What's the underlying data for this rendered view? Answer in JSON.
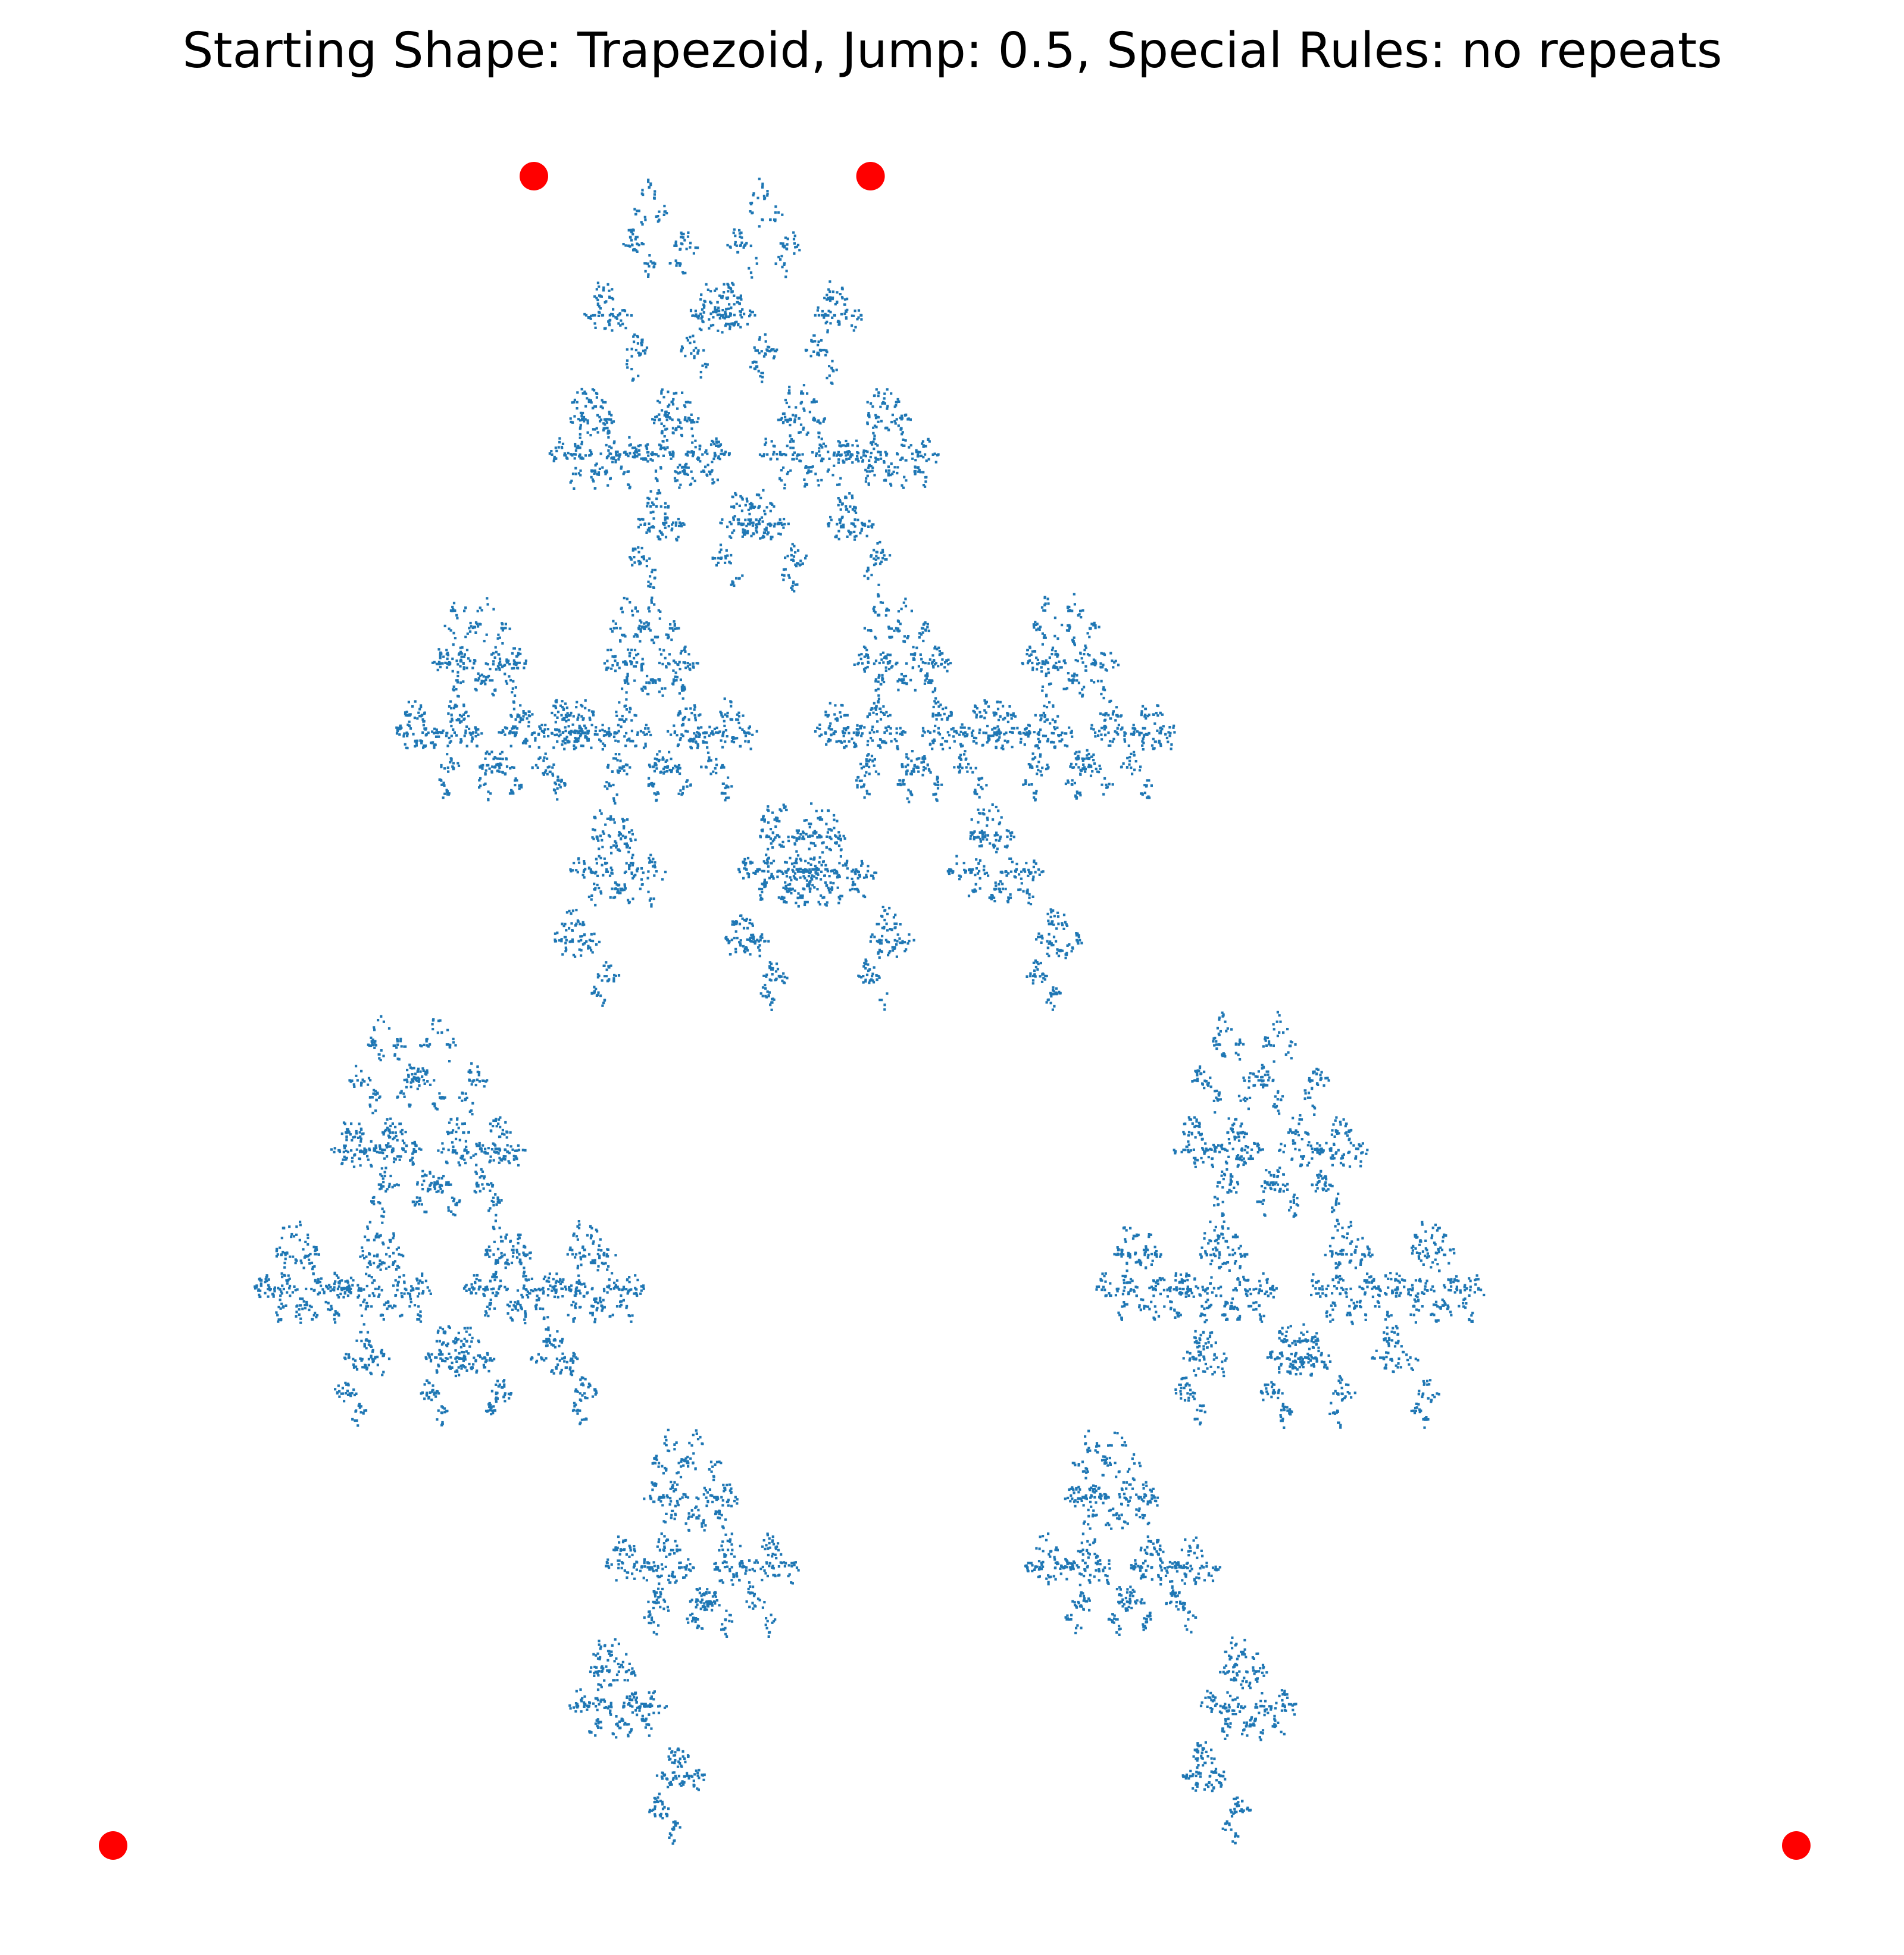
{
  "chart_data": {
    "type": "scatter",
    "title": "Starting Shape: Trapezoid, Jump: 0.5, Special Rules: no repeats",
    "xlabel": "",
    "ylabel": "",
    "axes_visible": false,
    "grid": false,
    "xlim": [
      -0.05,
      1.05
    ],
    "ylim": [
      -0.05,
      1.05
    ],
    "colors": {
      "points": "#1f77b4",
      "vertices": "#ff0000"
    },
    "series": [
      {
        "values": "chaos-game iterates (jump 0.5, no repeated vertex choice)",
        "kind": "points"
      },
      {
        "kind": "vertices",
        "x": [
          0.0,
          0.25,
          0.45,
          1.0
        ],
        "y": [
          0.0,
          1.0,
          1.0,
          0.0
        ]
      }
    ]
  }
}
